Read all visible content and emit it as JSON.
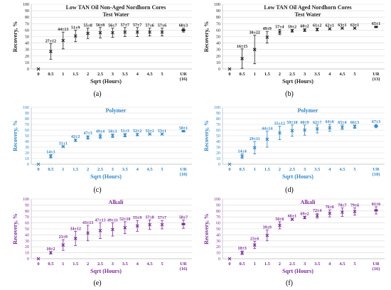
{
  "chart_data": [
    {
      "type": "scatter",
      "panel_label": "(a)",
      "title_lines": [
        "Low TAN Oil Non-Aged Nordhorn Cores",
        "Test Water"
      ],
      "xlabel": "Sqrt (Hours)",
      "ylabel": "Recovery, %",
      "color": "#222222",
      "ylim": [
        0,
        100
      ],
      "yticks": [
        "0",
        "10",
        "20",
        "30",
        "40",
        "50",
        "60",
        "70",
        "80",
        "90",
        "100"
      ],
      "x_ticks": [
        "0",
        "0.5",
        "1",
        "1.5",
        "2",
        "2.5",
        "3",
        "3.5",
        "4",
        "4.5",
        "5"
      ],
      "ur_label": [
        "UR",
        "(16)"
      ],
      "x": [
        0,
        0.5,
        1,
        1.5,
        2,
        2.5,
        3,
        3.5,
        4,
        4.5,
        5
      ],
      "y": [
        0,
        27,
        44,
        51,
        55,
        56,
        56,
        57,
        57,
        57,
        57
      ],
      "err": [
        0,
        12,
        13,
        9,
        8,
        8,
        7,
        7,
        7,
        6,
        6
      ],
      "point_labels": [
        "",
        "27±12",
        "44±13",
        "51±9",
        "55±8",
        "56±8",
        "56±7",
        "57±7",
        "57±7",
        "57±6",
        "57±6"
      ],
      "ur": {
        "y": 60,
        "err": 3,
        "label": "60±3"
      }
    },
    {
      "type": "scatter",
      "panel_label": "(b)",
      "title_lines": [
        "Low TAN Oil Aged Nordhorn Cores",
        "Test Water"
      ],
      "xlabel": "Sqrt (Hours)",
      "ylabel": "Recovery, %",
      "color": "#222222",
      "ylim": [
        0,
        100
      ],
      "yticks": [
        "0",
        "10",
        "20",
        "30",
        "40",
        "50",
        "60",
        "70",
        "80",
        "90",
        "100"
      ],
      "x_ticks": [
        "0",
        "0.5",
        "1",
        "1.5",
        "2",
        "2.5",
        "3",
        "3.5",
        "4",
        "4.5",
        "5"
      ],
      "ur_label": [
        "UR",
        "(13)"
      ],
      "x": [
        0,
        0.5,
        1,
        1.5,
        2,
        2.5,
        3,
        3.5,
        4,
        4.5,
        5
      ],
      "y": [
        0,
        16,
        30,
        49,
        57,
        59,
        60,
        61,
        62,
        63,
        63
      ],
      "err": [
        0,
        15,
        22,
        9,
        4,
        2,
        2,
        2,
        1,
        1,
        1
      ],
      "point_labels": [
        "",
        "16±15",
        "30±22",
        "49±9",
        "57±4",
        "59±2",
        "60±2",
        "61±2",
        "62±1",
        "63±1",
        "63±1"
      ],
      "ur": {
        "y": 65,
        "err": 1,
        "label": "65±1"
      }
    },
    {
      "type": "scatter",
      "panel_label": "(c)",
      "title_lines": [
        "Polymer"
      ],
      "xlabel": "Sqrt (Hours)",
      "ylabel": "Recovery, %",
      "color": "#2e86c8",
      "ylim": [
        0,
        100
      ],
      "yticks": [
        "0",
        "10",
        "20",
        "30",
        "40",
        "50",
        "60",
        "70",
        "80",
        "90",
        "100"
      ],
      "x_ticks": [
        "0",
        "0.5",
        "1",
        "1.5",
        "2",
        "2.5",
        "3",
        "3.5",
        "4",
        "4.5",
        "5"
      ],
      "ur_label": [
        "UR",
        "(18)"
      ],
      "x": [
        0,
        0.5,
        1,
        1.5,
        2,
        2.5,
        3,
        3.5,
        4,
        4.5,
        5
      ],
      "y": [
        0,
        14,
        31,
        42,
        47,
        49,
        50,
        51,
        52,
        53,
        53
      ],
      "err": [
        0,
        3,
        1,
        2,
        3,
        4,
        3,
        3,
        2,
        1,
        1
      ],
      "point_labels": [
        "",
        "14±3",
        "31±1",
        "42±2",
        "47±3",
        "49±4",
        "50±3",
        "51±3",
        "52±2",
        "53±1",
        "53±1"
      ],
      "ur": {
        "y": 58,
        "err": 1,
        "label": "58±1"
      }
    },
    {
      "type": "scatter",
      "panel_label": "(d)",
      "title_lines": [
        "Polymer"
      ],
      "xlabel": "Sqrt (Hours)",
      "ylabel": "Recovery, %",
      "color": "#2e86c8",
      "ylim": [
        0,
        100
      ],
      "yticks": [
        "0",
        "10",
        "20",
        "30",
        "40",
        "50",
        "60",
        "70",
        "80",
        "90",
        "100"
      ],
      "x_ticks": [
        "0",
        "0.5",
        "1",
        "1.5",
        "2",
        "2.5",
        "3",
        "3.5",
        "4",
        "4.5",
        "5"
      ],
      "ur_label": [
        "UR",
        "(18)"
      ],
      "x": [
        0,
        0.5,
        1,
        1.5,
        2,
        2.5,
        3,
        3.5,
        4,
        4.5,
        5
      ],
      "y": [
        0,
        14,
        29,
        44,
        55,
        59,
        60,
        62,
        64,
        65,
        66
      ],
      "err": [
        0,
        4,
        11,
        14,
        12,
        10,
        9,
        7,
        6,
        4,
        3
      ],
      "point_labels": [
        "",
        "14±4",
        "29±11",
        "44±14",
        "55±12",
        "59±10",
        "60±9",
        "62±7",
        "64±6",
        "65±4",
        "66±3"
      ],
      "ur": {
        "y": 67,
        "err": 3,
        "label": "67±3"
      }
    },
    {
      "type": "scatter",
      "panel_label": "(e)",
      "title_lines": [
        "Alkali"
      ],
      "xlabel": "Sqrt (Hours)",
      "ylabel": "Recovery, %",
      "color": "#7b2a98",
      "ylim": [
        0,
        100
      ],
      "yticks": [
        "0",
        "10",
        "20",
        "30",
        "40",
        "50",
        "60",
        "70",
        "80",
        "90",
        "100"
      ],
      "x_ticks": [
        "0",
        "0.5",
        "1",
        "1.5",
        "2",
        "2.5",
        "3",
        "3.5",
        "4",
        "4.5",
        "5"
      ],
      "ur_label": [
        "UR",
        "(16)"
      ],
      "x": [
        0,
        0.5,
        1,
        1.5,
        2,
        2.5,
        3,
        3.5,
        4,
        4.5,
        5
      ],
      "y": [
        0,
        10,
        23,
        34,
        43,
        47,
        49,
        52,
        55,
        57,
        57
      ],
      "err": [
        0,
        2,
        9,
        12,
        13,
        13,
        11,
        10,
        9,
        8,
        7
      ],
      "point_labels": [
        "",
        "10±2",
        "23±9",
        "34±12",
        "43±13",
        "47±13",
        "49±11",
        "52±10",
        "55±9",
        "57±8",
        "57±7"
      ],
      "ur": {
        "y": 58,
        "err": 7,
        "label": "58±7"
      }
    },
    {
      "type": "scatter",
      "panel_label": "(f)",
      "title_lines": [
        "Alkali"
      ],
      "xlabel": "Sqrt (Hours)",
      "ylabel": "Recovery, %",
      "color": "#7b2a98",
      "ylim": [
        0,
        100
      ],
      "yticks": [
        "0",
        "10",
        "20",
        "30",
        "40",
        "50",
        "60",
        "70",
        "80",
        "90",
        "100"
      ],
      "x_ticks": [
        "0",
        "0.5",
        "1",
        "1.5",
        "2",
        "2.5",
        "3",
        "3.5",
        "4",
        "4.5",
        "5"
      ],
      "ur_label": [
        "UR",
        "(16)"
      ],
      "x": [
        0,
        0.5,
        1,
        1.5,
        2,
        2.5,
        3,
        3.5,
        4,
        4.5,
        5
      ],
      "y": [
        0,
        10,
        23,
        39,
        56,
        66,
        69,
        72,
        76,
        78,
        79
      ],
      "err": [
        0,
        3,
        6,
        9,
        6,
        1,
        2,
        4,
        6,
        7,
        6
      ],
      "point_labels": [
        "",
        "10±3",
        "23±6",
        "39±9",
        "56±6",
        "66±1",
        "69±2",
        "72±4",
        "76±6",
        "78±7",
        "79±6"
      ],
      "ur": {
        "y": 81,
        "err": 6,
        "label": "81±6"
      }
    }
  ]
}
